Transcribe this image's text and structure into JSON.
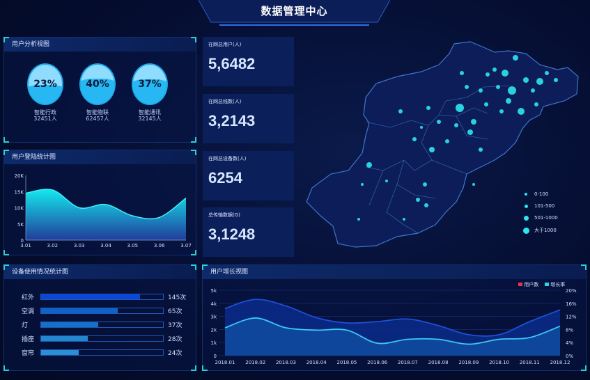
{
  "header": {
    "title": "数据管理中心"
  },
  "user_analysis": {
    "title": "用户分析视图",
    "items": [
      {
        "percent": "23%",
        "fraction": 0.23,
        "name": "智能行政",
        "count": "32451人"
      },
      {
        "percent": "40%",
        "fraction": 0.4,
        "name": "智能物联",
        "count": "62457人"
      },
      {
        "percent": "37%",
        "fraction": 0.37,
        "name": "智能通讯",
        "count": "32145人"
      }
    ]
  },
  "login_chart": {
    "title": "用户登陆统计图"
  },
  "device_usage": {
    "title": "设备使用情况统计图",
    "items": [
      {
        "name": "红外",
        "count": "145次",
        "fill_percent": 81,
        "color": "#0a46d8"
      },
      {
        "name": "空调",
        "count": "65次",
        "fill_percent": 63,
        "color": "#0f62c9"
      },
      {
        "name": "灯",
        "count": "37次",
        "fill_percent": 47,
        "color": "#1570c8"
      },
      {
        "name": "插座",
        "count": "28次",
        "fill_percent": 38,
        "color": "#2287cf"
      },
      {
        "name": "窗帘",
        "count": "24次",
        "fill_percent": 31,
        "color": "#2a8fd4"
      }
    ]
  },
  "stats": [
    {
      "label": "在网总用户(人)",
      "value": "5,6482"
    },
    {
      "label": "在网总线数(人)",
      "value": "3,2143"
    },
    {
      "label": "在网总设备数(人)",
      "value": "6254"
    },
    {
      "label": "总传输数据(G)",
      "value": "3,1248"
    }
  ],
  "map": {
    "legend": [
      "0-100",
      "101-500",
      "501-1000",
      "大于1000"
    ],
    "dot_color": "#2de6f0"
  },
  "growth_chart": {
    "title": "用户增长视图"
  },
  "chart_data": [
    {
      "type": "area",
      "categories": [
        "3.01",
        "3.02",
        "3.03",
        "3.04",
        "3.05",
        "3.06",
        "3.07"
      ],
      "values": [
        14500,
        15500,
        10000,
        11000,
        7500,
        7000,
        13000
      ],
      "yticks": [
        "0",
        "5K",
        "10K",
        "15K",
        "20K"
      ],
      "ylim": [
        0,
        20000
      ],
      "grid": false
    },
    {
      "type": "area",
      "categories": [
        "2018.01",
        "2018.02",
        "2018.03",
        "2018.04",
        "2018.05",
        "2018.06",
        "2018.07",
        "2018.08",
        "2018.09",
        "2018.10",
        "2018.11",
        "2018.12"
      ],
      "series": [
        {
          "name": "用户数",
          "axis": "left",
          "values": [
            3600,
            4300,
            3800,
            2900,
            2500,
            2600,
            2800,
            2300,
            1600,
            1600,
            2600,
            3500
          ],
          "color": "#e8344a"
        },
        {
          "name": "增长率",
          "axis": "right",
          "values": [
            8.5,
            11.5,
            8.5,
            7.8,
            7.8,
            3.8,
            5,
            5,
            3.5,
            5,
            5.5,
            9
          ],
          "color": "#2ad4e8"
        }
      ],
      "yticks_left": [
        "0",
        "1k",
        "2k",
        "3k",
        "4k",
        "5k"
      ],
      "ylim_left": [
        0,
        5000
      ],
      "yticks_right": [
        "0%",
        "4%",
        "8%",
        "12%",
        "16%",
        "20%"
      ],
      "ylim_right": [
        0,
        20
      ],
      "legend": "top-right",
      "grid": true
    }
  ]
}
